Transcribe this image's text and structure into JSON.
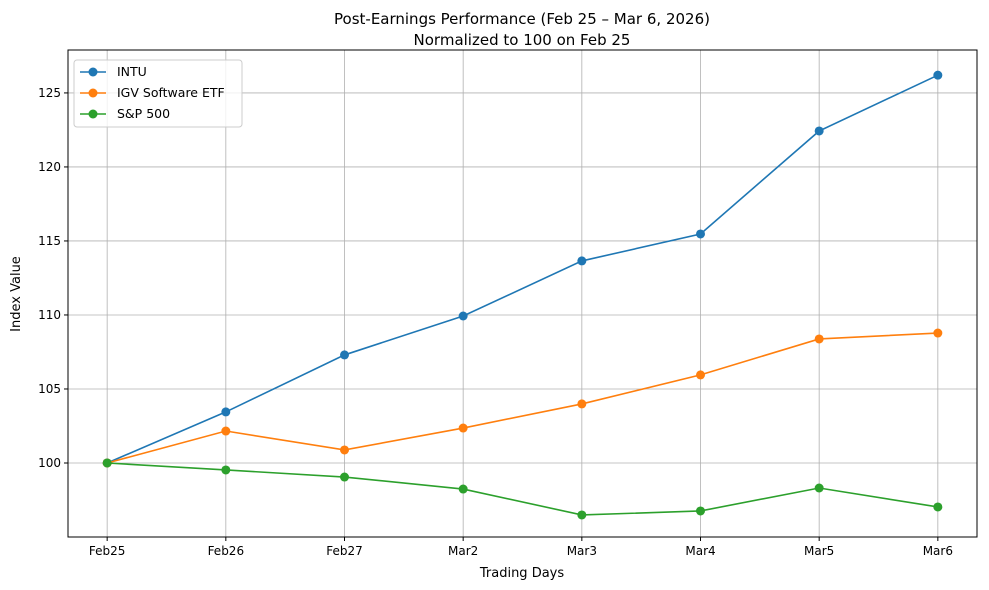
{
  "chart_data": {
    "type": "line",
    "title": "Post-Earnings Performance (Feb 25 – Mar 6, 2026)",
    "subtitle": "Normalized to 100 on Feb 25",
    "xlabel": "Trading Days",
    "ylabel": "Index Value",
    "categories": [
      "Feb25",
      "Feb26",
      "Feb27",
      "Mar2",
      "Mar3",
      "Mar4",
      "Mar5",
      "Mar6"
    ],
    "ylim": [
      95.0,
      127.9
    ],
    "yticks": [
      100,
      105,
      110,
      115,
      120,
      125
    ],
    "grid": true,
    "legend_position": "top-left",
    "series": [
      {
        "name": "INTU",
        "color": "#1f77b4",
        "values": [
          100,
          103.45,
          107.3,
          109.93,
          113.65,
          115.47,
          122.43,
          126.2
        ]
      },
      {
        "name": "IGV Software ETF",
        "color": "#ff7f0e",
        "values": [
          100,
          102.16,
          100.88,
          102.36,
          103.99,
          105.95,
          108.38,
          108.78
        ]
      },
      {
        "name": "S&P 500",
        "color": "#2ca02c",
        "values": [
          100,
          99.53,
          99.05,
          98.24,
          96.49,
          96.76,
          98.31,
          97.03
        ]
      }
    ]
  }
}
